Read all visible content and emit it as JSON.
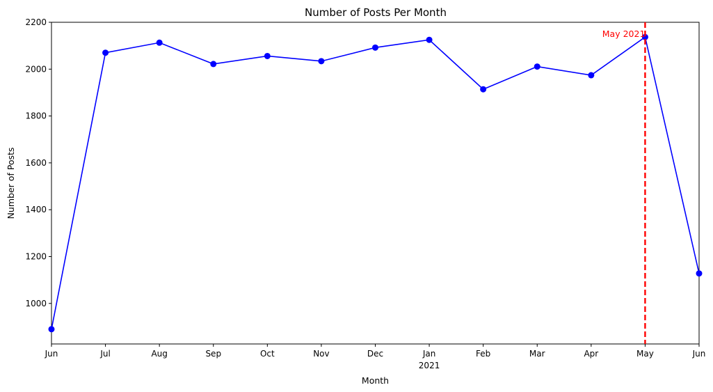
{
  "chart_data": {
    "type": "line",
    "title": "Number of Posts Per Month",
    "xlabel": "Month",
    "ylabel": "Number of Posts",
    "x": [
      "2020-06",
      "2020-07",
      "2020-08",
      "2020-09",
      "2020-10",
      "2020-11",
      "2020-12",
      "2021-01",
      "2021-02",
      "2021-03",
      "2021-04",
      "2021-05",
      "2021-06"
    ],
    "x_tick_labels": [
      "Jun",
      "Jul",
      "Aug",
      "Sep",
      "Oct",
      "Nov",
      "Dec",
      "Jan",
      "Feb",
      "Mar",
      "Apr",
      "May",
      "Jun"
    ],
    "x_year_label": "2021",
    "series": [
      {
        "values": [
          890,
          2070,
          2113,
          2022,
          2056,
          2034,
          2092,
          2125,
          1914,
          2011,
          1974,
          2137,
          1128
        ],
        "color": "#0000ff",
        "marker": "circle"
      }
    ],
    "ylim": [
      827,
      2200
    ],
    "y_ticks": [
      1000,
      1200,
      1400,
      1600,
      1800,
      2000,
      2200
    ],
    "grid": false,
    "annotation": {
      "x": "2021-05",
      "label": "May 2021",
      "color": "#ff0000",
      "line_style": "dashed"
    }
  }
}
